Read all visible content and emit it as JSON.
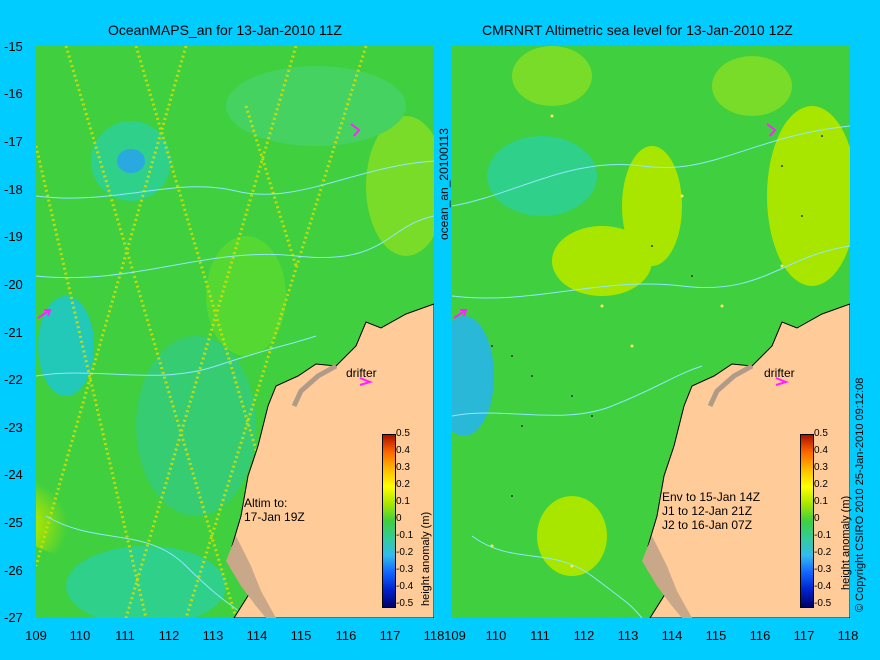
{
  "titles": {
    "left": "OceanMAPS_an for 13-Jan-2010 11Z",
    "right": "CMRNRT Altimetric sea level  for 13-Jan-2010 12Z"
  },
  "axes": {
    "x_ticks": [
      "109",
      "110",
      "111",
      "112",
      "113",
      "114",
      "115",
      "116",
      "117",
      "118"
    ],
    "y_ticks": [
      "-15",
      "-16",
      "-17",
      "-18",
      "-19",
      "-20",
      "-21",
      "-22",
      "-23",
      "-24",
      "-25",
      "-26",
      "-27"
    ],
    "right_x_first": "109"
  },
  "left_panel": {
    "altim_note": [
      "Altim to:",
      "17-Jan 19Z"
    ],
    "drifter_label": "drifter"
  },
  "right_panel": {
    "env_note": [
      "Env to 15-Jan 14Z",
      "J1 to 12-Jan 21Z",
      "J2 to 16-Jan 07Z"
    ],
    "drifter_label": "drifter"
  },
  "colorbar": {
    "ticks": [
      "0.5",
      "0.4",
      "0.3",
      "0.2",
      "0.1",
      "0",
      "-0.1",
      "-0.2",
      "-0.3",
      "-0.4",
      "-0.5"
    ],
    "label": "height anomaly (m)"
  },
  "side_labels": {
    "center": "ocean_an_20100113",
    "right": "© Copyright CSIRO 2010   25-Jan-2010 09:12:08"
  },
  "colors": {
    "background": "#00ccff",
    "ocean_green": "#3fcf3f",
    "land": "#ffcc99"
  }
}
